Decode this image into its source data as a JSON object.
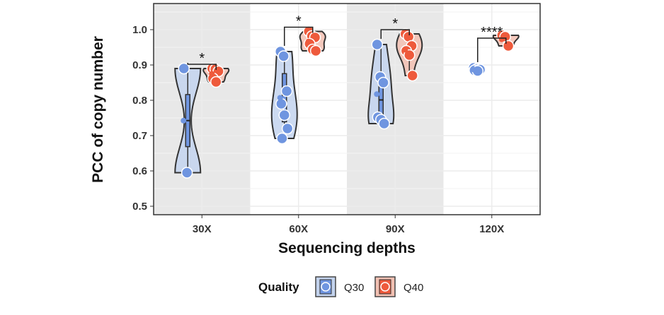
{
  "chart_data": {
    "type": "violin",
    "xlabel": "Sequencing depths",
    "ylabel": "PCC of copy number",
    "ylim": [
      0.47,
      1.07
    ],
    "yticks": [
      "0.5",
      "0.6",
      "0.7",
      "0.8",
      "0.9",
      "1.0"
    ],
    "categories": [
      "30X",
      "60X",
      "90X",
      "120X"
    ],
    "grid": true,
    "legend": {
      "title": "Quality",
      "placement": "bottom"
    },
    "series": [
      {
        "name": "Q30",
        "color": "#6f95e0",
        "fill": "#c3d3ee",
        "values": [
          [
            0.89,
            0.595
          ],
          [
            0.938,
            0.925,
            0.826,
            0.79,
            0.758,
            0.72,
            0.692
          ],
          [
            0.958,
            0.866,
            0.85,
            0.752,
            0.745,
            0.734
          ],
          [
            0.892,
            0.889,
            0.887,
            0.885,
            0.883
          ]
        ]
      },
      {
        "name": "Q40",
        "color": "#ee5a3c",
        "fill": "#f2c0b2",
        "values": [
          [
            0.89,
            0.888,
            0.882,
            0.862,
            0.852
          ],
          [
            0.995,
            0.982,
            0.978,
            0.96,
            0.944,
            0.94
          ],
          [
            0.988,
            0.98,
            0.954,
            0.94,
            0.928,
            0.87
          ],
          [
            0.984,
            0.98,
            0.954
          ]
        ]
      }
    ],
    "significance": [
      "*",
      "*",
      "*",
      "****"
    ]
  }
}
